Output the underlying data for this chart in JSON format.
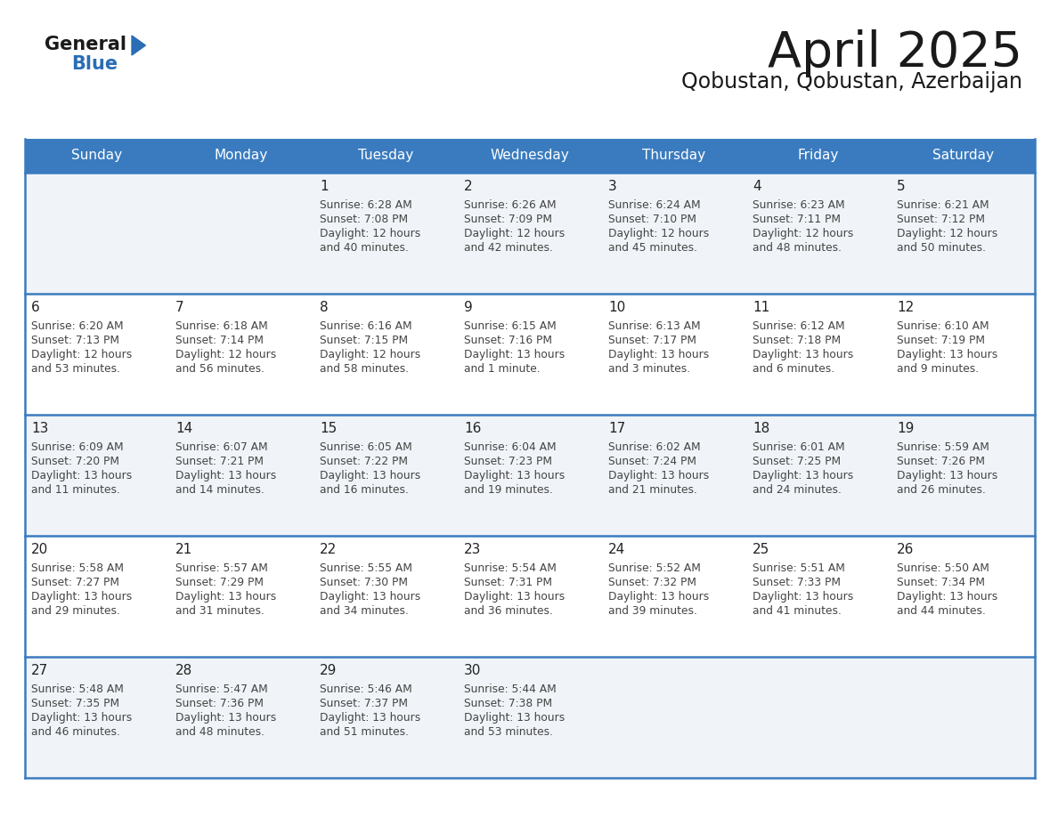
{
  "title": "April 2025",
  "subtitle": "Qobustan, Qobustan, Azerbaijan",
  "days_of_week": [
    "Sunday",
    "Monday",
    "Tuesday",
    "Wednesday",
    "Thursday",
    "Friday",
    "Saturday"
  ],
  "header_bg": "#3a7bbf",
  "header_text": "#ffffff",
  "row_line_color": "#3a7bbf",
  "text_color": "#444444",
  "day_num_color": "#222222",
  "calendar_data": [
    [
      {
        "day": "",
        "sunrise": "",
        "sunset": "",
        "daylight": ""
      },
      {
        "day": "",
        "sunrise": "",
        "sunset": "",
        "daylight": ""
      },
      {
        "day": "1",
        "sunrise": "Sunrise: 6:28 AM",
        "sunset": "Sunset: 7:08 PM",
        "daylight": "Daylight: 12 hours\nand 40 minutes."
      },
      {
        "day": "2",
        "sunrise": "Sunrise: 6:26 AM",
        "sunset": "Sunset: 7:09 PM",
        "daylight": "Daylight: 12 hours\nand 42 minutes."
      },
      {
        "day": "3",
        "sunrise": "Sunrise: 6:24 AM",
        "sunset": "Sunset: 7:10 PM",
        "daylight": "Daylight: 12 hours\nand 45 minutes."
      },
      {
        "day": "4",
        "sunrise": "Sunrise: 6:23 AM",
        "sunset": "Sunset: 7:11 PM",
        "daylight": "Daylight: 12 hours\nand 48 minutes."
      },
      {
        "day": "5",
        "sunrise": "Sunrise: 6:21 AM",
        "sunset": "Sunset: 7:12 PM",
        "daylight": "Daylight: 12 hours\nand 50 minutes."
      }
    ],
    [
      {
        "day": "6",
        "sunrise": "Sunrise: 6:20 AM",
        "sunset": "Sunset: 7:13 PM",
        "daylight": "Daylight: 12 hours\nand 53 minutes."
      },
      {
        "day": "7",
        "sunrise": "Sunrise: 6:18 AM",
        "sunset": "Sunset: 7:14 PM",
        "daylight": "Daylight: 12 hours\nand 56 minutes."
      },
      {
        "day": "8",
        "sunrise": "Sunrise: 6:16 AM",
        "sunset": "Sunset: 7:15 PM",
        "daylight": "Daylight: 12 hours\nand 58 minutes."
      },
      {
        "day": "9",
        "sunrise": "Sunrise: 6:15 AM",
        "sunset": "Sunset: 7:16 PM",
        "daylight": "Daylight: 13 hours\nand 1 minute."
      },
      {
        "day": "10",
        "sunrise": "Sunrise: 6:13 AM",
        "sunset": "Sunset: 7:17 PM",
        "daylight": "Daylight: 13 hours\nand 3 minutes."
      },
      {
        "day": "11",
        "sunrise": "Sunrise: 6:12 AM",
        "sunset": "Sunset: 7:18 PM",
        "daylight": "Daylight: 13 hours\nand 6 minutes."
      },
      {
        "day": "12",
        "sunrise": "Sunrise: 6:10 AM",
        "sunset": "Sunset: 7:19 PM",
        "daylight": "Daylight: 13 hours\nand 9 minutes."
      }
    ],
    [
      {
        "day": "13",
        "sunrise": "Sunrise: 6:09 AM",
        "sunset": "Sunset: 7:20 PM",
        "daylight": "Daylight: 13 hours\nand 11 minutes."
      },
      {
        "day": "14",
        "sunrise": "Sunrise: 6:07 AM",
        "sunset": "Sunset: 7:21 PM",
        "daylight": "Daylight: 13 hours\nand 14 minutes."
      },
      {
        "day": "15",
        "sunrise": "Sunrise: 6:05 AM",
        "sunset": "Sunset: 7:22 PM",
        "daylight": "Daylight: 13 hours\nand 16 minutes."
      },
      {
        "day": "16",
        "sunrise": "Sunrise: 6:04 AM",
        "sunset": "Sunset: 7:23 PM",
        "daylight": "Daylight: 13 hours\nand 19 minutes."
      },
      {
        "day": "17",
        "sunrise": "Sunrise: 6:02 AM",
        "sunset": "Sunset: 7:24 PM",
        "daylight": "Daylight: 13 hours\nand 21 minutes."
      },
      {
        "day": "18",
        "sunrise": "Sunrise: 6:01 AM",
        "sunset": "Sunset: 7:25 PM",
        "daylight": "Daylight: 13 hours\nand 24 minutes."
      },
      {
        "day": "19",
        "sunrise": "Sunrise: 5:59 AM",
        "sunset": "Sunset: 7:26 PM",
        "daylight": "Daylight: 13 hours\nand 26 minutes."
      }
    ],
    [
      {
        "day": "20",
        "sunrise": "Sunrise: 5:58 AM",
        "sunset": "Sunset: 7:27 PM",
        "daylight": "Daylight: 13 hours\nand 29 minutes."
      },
      {
        "day": "21",
        "sunrise": "Sunrise: 5:57 AM",
        "sunset": "Sunset: 7:29 PM",
        "daylight": "Daylight: 13 hours\nand 31 minutes."
      },
      {
        "day": "22",
        "sunrise": "Sunrise: 5:55 AM",
        "sunset": "Sunset: 7:30 PM",
        "daylight": "Daylight: 13 hours\nand 34 minutes."
      },
      {
        "day": "23",
        "sunrise": "Sunrise: 5:54 AM",
        "sunset": "Sunset: 7:31 PM",
        "daylight": "Daylight: 13 hours\nand 36 minutes."
      },
      {
        "day": "24",
        "sunrise": "Sunrise: 5:52 AM",
        "sunset": "Sunset: 7:32 PM",
        "daylight": "Daylight: 13 hours\nand 39 minutes."
      },
      {
        "day": "25",
        "sunrise": "Sunrise: 5:51 AM",
        "sunset": "Sunset: 7:33 PM",
        "daylight": "Daylight: 13 hours\nand 41 minutes."
      },
      {
        "day": "26",
        "sunrise": "Sunrise: 5:50 AM",
        "sunset": "Sunset: 7:34 PM",
        "daylight": "Daylight: 13 hours\nand 44 minutes."
      }
    ],
    [
      {
        "day": "27",
        "sunrise": "Sunrise: 5:48 AM",
        "sunset": "Sunset: 7:35 PM",
        "daylight": "Daylight: 13 hours\nand 46 minutes."
      },
      {
        "day": "28",
        "sunrise": "Sunrise: 5:47 AM",
        "sunset": "Sunset: 7:36 PM",
        "daylight": "Daylight: 13 hours\nand 48 minutes."
      },
      {
        "day": "29",
        "sunrise": "Sunrise: 5:46 AM",
        "sunset": "Sunset: 7:37 PM",
        "daylight": "Daylight: 13 hours\nand 51 minutes."
      },
      {
        "day": "30",
        "sunrise": "Sunrise: 5:44 AM",
        "sunset": "Sunset: 7:38 PM",
        "daylight": "Daylight: 13 hours\nand 53 minutes."
      },
      {
        "day": "",
        "sunrise": "",
        "sunset": "",
        "daylight": ""
      },
      {
        "day": "",
        "sunrise": "",
        "sunset": "",
        "daylight": ""
      },
      {
        "day": "",
        "sunrise": "",
        "sunset": "",
        "daylight": ""
      }
    ]
  ],
  "logo_general_color": "#1a1a1a",
  "logo_blue_color": "#2a6db5",
  "logo_triangle_color": "#2a6db5",
  "title_color": "#1a1a1a",
  "subtitle_color": "#1a1a1a"
}
